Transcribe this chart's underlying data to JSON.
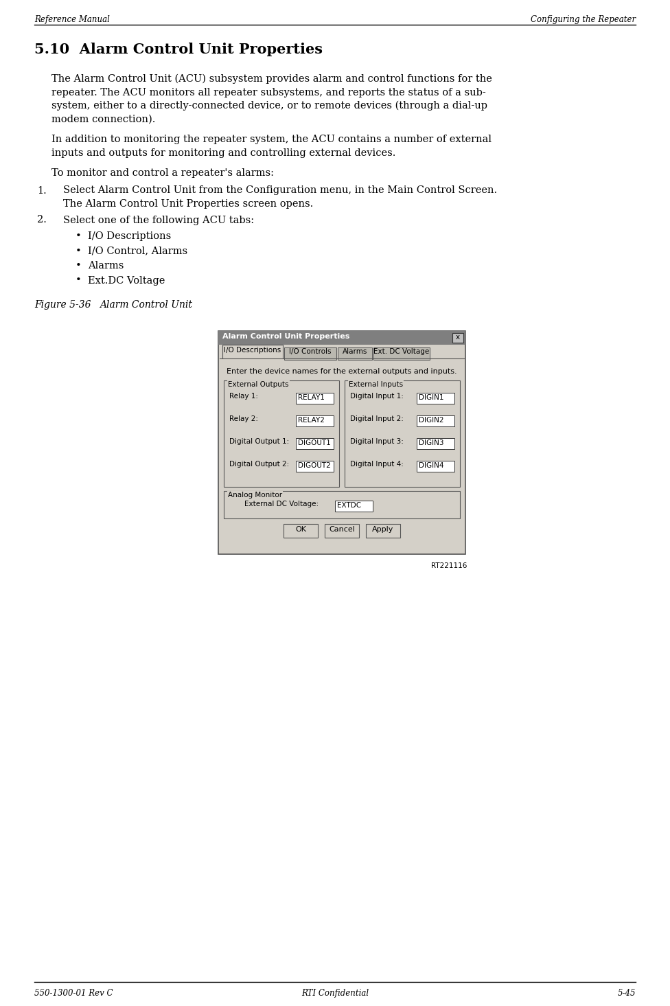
{
  "header_left": "Reference Manual",
  "header_right": "Configuring the Repeater",
  "footer_left": "550-1300-01 Rev C",
  "footer_center": "RTI Confidential",
  "footer_right": "5-45",
  "section_number": "5.10",
  "section_title": "Alarm Control Unit Properties",
  "para1_lines": [
    "The Alarm Control Unit (ACU) subsystem provides alarm and control functions for the",
    "repeater. The ACU monitors all repeater subsystems, and reports the status of a sub-",
    "system, either to a directly-connected device, or to remote devices (through a dial-up",
    "modem connection)."
  ],
  "para2_lines": [
    "In addition to monitoring the repeater system, the ACU contains a number of external",
    "inputs and outputs for monitoring and controlling external devices."
  ],
  "para3": "To monitor and control a repeater's alarms:",
  "step1_main": "Select Alarm Control Unit from the Configuration menu, in the Main Control Screen.",
  "step1_sub": "The Alarm Control Unit Properties screen opens.",
  "step2_main": "Select one of the following ACU tabs:",
  "bullets": [
    "I/O Descriptions",
    "I/O Control, Alarms",
    "Alarms",
    "Ext.DC Voltage"
  ],
  "figure_label": "Figure 5-36",
  "figure_caption": "Alarm Control Unit",
  "figure_ref": "RT221116",
  "dialog_title": "Alarm Control Unit Properties",
  "tabs": [
    "I/O Descriptions",
    "I/O Controls",
    "Alarms",
    "Ext. DC Voltage"
  ],
  "dialog_instruction": "Enter the device names for the external outputs and inputs.",
  "ext_outputs_label": "External Outputs",
  "ext_inputs_label": "External Inputs",
  "output_labels": [
    "Relay 1:",
    "Relay 2:",
    "Digital Output 1:",
    "Digital Output 2:"
  ],
  "output_values": [
    "RELAY1",
    "RELAY2",
    "DIGOUT1",
    "DIGOUT2"
  ],
  "input_labels": [
    "Digital Input 1:",
    "Digital Input 2:",
    "Digital Input 3:",
    "Digital Input 4:"
  ],
  "input_values": [
    "DIGIN1",
    "DIGIN2",
    "DIGIN3",
    "DIGIN4"
  ],
  "analog_label": "Analog Monitor",
  "voltage_label": "External DC Voltage:",
  "voltage_value": "EXTDC",
  "buttons": [
    "OK",
    "Cancel",
    "Apply"
  ],
  "bg_color": "#ffffff",
  "dialog_bg": "#d4d0c8",
  "dialog_title_bg": "#7f7f7f",
  "field_bg": "#ffffff"
}
